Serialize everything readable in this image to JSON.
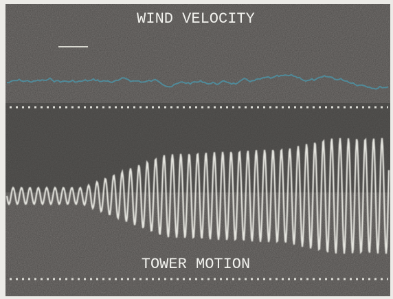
{
  "top_label": "WIND VELOCITY",
  "bottom_label": "TOWER MOTION"
}
